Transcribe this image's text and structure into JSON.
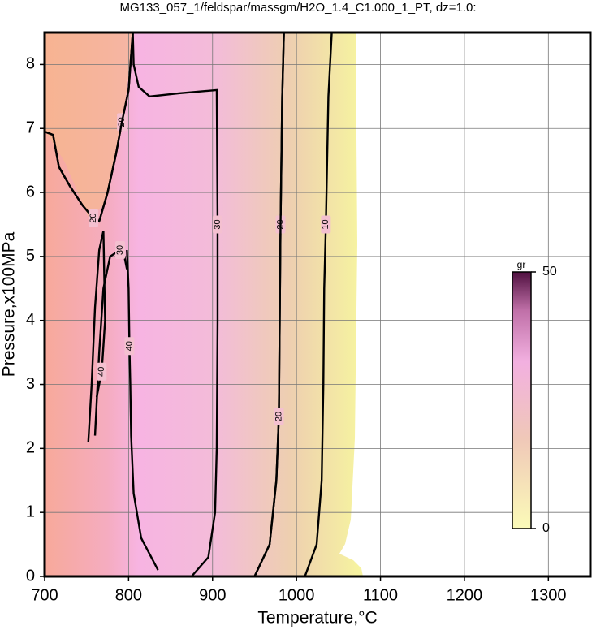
{
  "chart_data": {
    "type": "contour",
    "title": "MG133_057_1/feldspar/massgm/H2O_1.4_C1.000_1_PT, dz=1.0:",
    "x_label": "Temperature,°C",
    "y_label": "Pressure,x100MPa",
    "xlim": [
      700,
      1350
    ],
    "ylim": [
      0,
      8.5
    ],
    "xticks": [
      700,
      800,
      900,
      1000,
      1100,
      1200,
      1300
    ],
    "yticks": [
      0,
      1,
      2,
      3,
      4,
      5,
      6,
      7,
      8
    ],
    "grid": true,
    "contours": [
      {
        "level": 10,
        "x": [
          1010,
          1024,
          1030,
          1032,
          1033,
          1035,
          1038,
          1042
        ],
        "y": [
          0,
          0.5,
          1.5,
          3,
          4.5,
          5.5,
          7.5,
          8.5
        ],
        "label_at": 5
      },
      {
        "level": 20,
        "x": [
          950,
          968,
          976,
          979,
          980,
          981,
          983,
          985
        ],
        "y": [
          0,
          0.5,
          1.5,
          2.5,
          4,
          5.5,
          7.5,
          8.5
        ],
        "label_at": 5
      },
      {
        "level": 20,
        "x": [
          950,
          968,
          976,
          979,
          980,
          981,
          983,
          985
        ],
        "y": [
          0,
          0.5,
          1.5,
          2.5,
          4,
          5.5,
          7.5,
          8.5
        ],
        "label_at": 3
      },
      {
        "level": 30,
        "x": [
          875,
          895,
          903,
          905,
          906,
          906,
          905,
          860,
          825,
          812,
          806,
          805
        ],
        "y": [
          0,
          0.3,
          1,
          2,
          4,
          5.5,
          7.6,
          7.55,
          7.5,
          7.65,
          8,
          8.5
        ],
        "label_at": 5
      },
      {
        "level": 40,
        "x": [
          835,
          815,
          806,
          803,
          802,
          801,
          800,
          798
        ],
        "y": [
          0.1,
          0.6,
          1.3,
          2.2,
          3,
          3.6,
          4.5,
          5.1
        ],
        "label_at": 5
      },
      {
        "level": 20,
        "x": [
          700,
          710,
          717,
          730,
          745,
          758,
          765,
          775,
          785,
          792,
          800,
          805
        ],
        "y": [
          6.95,
          6.9,
          6.4,
          6.1,
          5.8,
          5.6,
          5.55,
          6.0,
          6.6,
          7.1,
          7.6,
          8.5
        ],
        "label_at": 9
      },
      {
        "level": 20,
        "x": [
          700,
          710,
          717,
          730,
          745,
          758,
          765,
          775,
          785,
          792,
          800,
          805
        ],
        "y": [
          6.95,
          6.9,
          6.4,
          6.1,
          5.8,
          5.6,
          5.55,
          6.0,
          6.6,
          7.1,
          7.6,
          8.5
        ],
        "label_at": 5
      },
      {
        "level": 30,
        "x": [
          760,
          765,
          770,
          778,
          790,
          795,
          798
        ],
        "y": [
          2.2,
          3.5,
          4.5,
          5.0,
          5.1,
          5.0,
          4.8
        ],
        "label_at": 4
      },
      {
        "level": 40,
        "x": [
          752,
          756,
          760,
          765,
          770,
          772,
          768,
          762
        ],
        "y": [
          2.1,
          3.0,
          4.2,
          5.1,
          5.4,
          4.0,
          3.2,
          2.8
        ],
        "label_at": 6
      }
    ],
    "colorbar": {
      "label": "gr",
      "lim": [
        0,
        50
      ],
      "ticks": [
        0,
        50
      ]
    }
  }
}
